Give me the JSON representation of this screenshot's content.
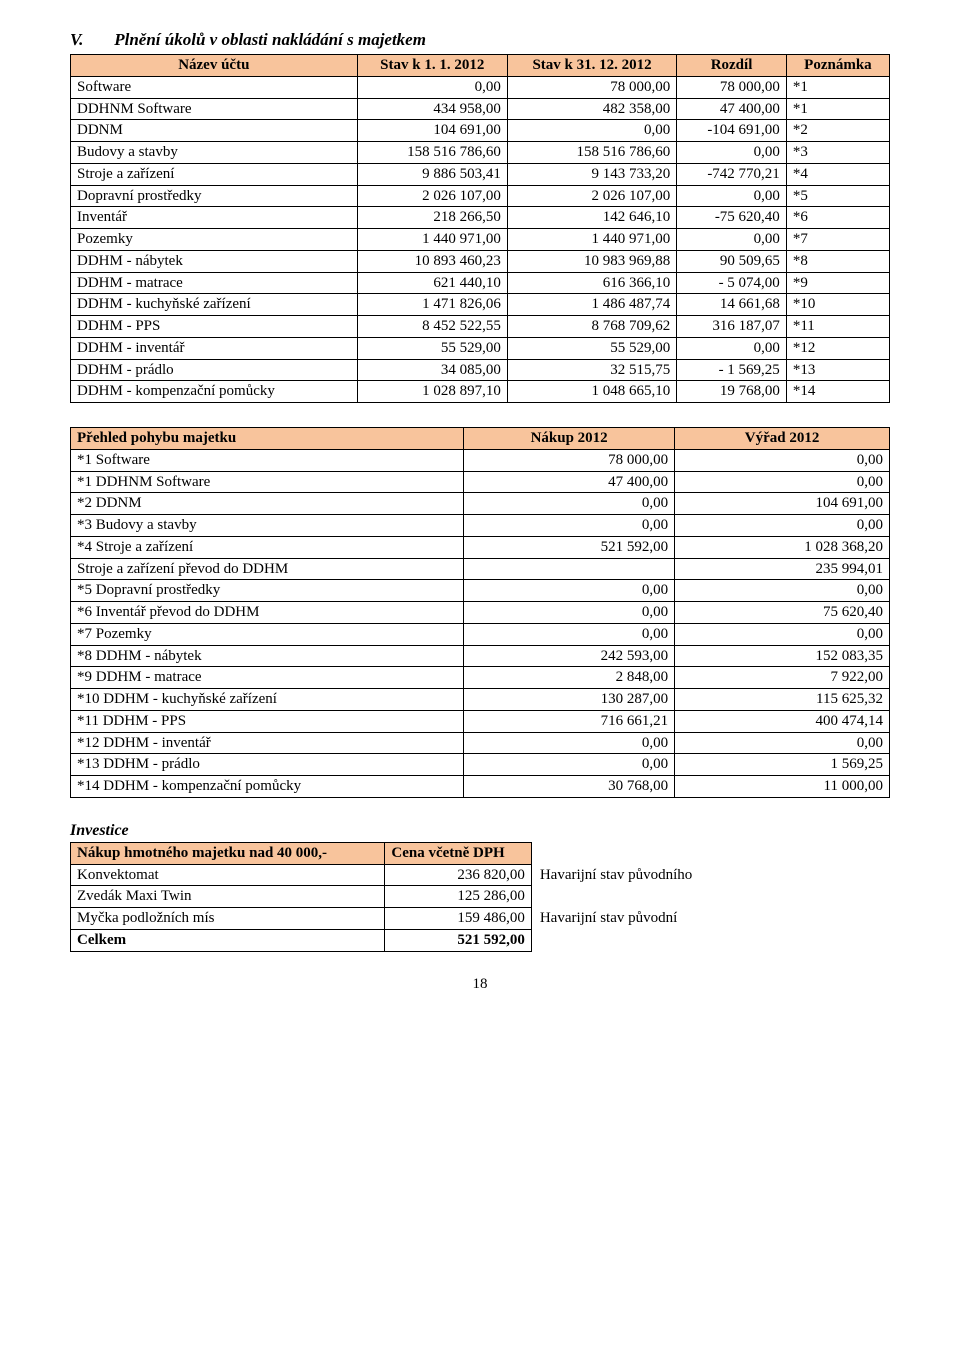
{
  "section": {
    "roman": "V.",
    "title": "Plnění úkolů v oblasti nakládání s majetkem"
  },
  "table1": {
    "headers": [
      "Název účtu",
      "Stav k 1. 1. 2012",
      "Stav k 31. 12. 2012",
      "Rozdíl",
      "Poznámka"
    ],
    "rows": [
      {
        "name": "Software",
        "v1": "0,00",
        "v2": "78 000,00",
        "diff": "78 000,00",
        "note": "*1"
      },
      {
        "name": "DDHNM Software",
        "v1": "434 958,00",
        "v2": "482 358,00",
        "diff": "47 400,00",
        "note": "*1"
      },
      {
        "name": "DDNM",
        "v1": "104 691,00",
        "v2": "0,00",
        "diff": "-104 691,00",
        "note": "*2"
      },
      {
        "name": "Budovy a stavby",
        "v1": "158 516 786,60",
        "v2": "158 516 786,60",
        "diff": "0,00",
        "note": "*3"
      },
      {
        "name": "Stroje a zařízení",
        "v1": "9 886 503,41",
        "v2": "9 143 733,20",
        "diff": "-742  770,21",
        "note": "*4"
      },
      {
        "name": "Dopravní prostředky",
        "v1": "2 026 107,00",
        "v2": "2 026 107,00",
        "diff": "0,00",
        "note": "*5"
      },
      {
        "name": "Inventář",
        "v1": "218 266,50",
        "v2": "142 646,10",
        "diff": "-75 620,40",
        "note": "*6"
      },
      {
        "name": "Pozemky",
        "v1": "1 440 971,00",
        "v2": "1 440 971,00",
        "diff": "0,00",
        "note": "*7"
      },
      {
        "name": "DDHM - nábytek",
        "v1": "10 893 460,23",
        "v2": "10 983 969,88",
        "diff": "90 509,65",
        "note": "*8"
      },
      {
        "name": "DDHM - matrace",
        "v1": "621 440,10",
        "v2": "616 366,10",
        "diff": "- 5 074,00",
        "note": "*9"
      },
      {
        "name": "DDHM - kuchyňské zařízení",
        "v1": "1 471 826,06",
        "v2": "1 486 487,74",
        "diff": "14 661,68",
        "note": "*10"
      },
      {
        "name": "DDHM - PPS",
        "v1": "8 452 522,55",
        "v2": "8 768 709,62",
        "diff": "316 187,07",
        "note": "*11"
      },
      {
        "name": "DDHM - inventář",
        "v1": "55 529,00",
        "v2": "55 529,00",
        "diff": "0,00",
        "note": "*12"
      },
      {
        "name": "DDHM - prádlo",
        "v1": "34 085,00",
        "v2": "32 515,75",
        "diff": "- 1 569,25",
        "note": "*13"
      },
      {
        "name": "DDHM - kompenzační pomůcky",
        "v1": "1 028 897,10",
        "v2": "1 048 665,10",
        "diff": "19 768,00",
        "note": "*14"
      }
    ]
  },
  "table2": {
    "headers": [
      "Přehled pohybu majetku",
      "Nákup 2012",
      "Výřad 2012"
    ],
    "rows": [
      {
        "name": "*1 Software",
        "v1": "78 000,00",
        "v2": "0,00"
      },
      {
        "name": "*1 DDHNM Software",
        "v1": "47 400,00",
        "v2": "0,00"
      },
      {
        "name": "*2 DDNM",
        "v1": "0,00",
        "v2": "104 691,00"
      },
      {
        "name": "*3 Budovy a stavby",
        "v1": "0,00",
        "v2": "0,00"
      },
      {
        "name": "*4 Stroje a zařízení",
        "v1": "521 592,00",
        "v2": "1 028 368,20"
      },
      {
        "name": "Stroje a zařízení převod do DDHM",
        "v1": "",
        "v2": "235 994,01"
      },
      {
        "name": "*5 Dopravní prostředky",
        "v1": "0,00",
        "v2": "0,00"
      },
      {
        "name": "*6 Inventář převod do DDHM",
        "v1": "0,00",
        "v2": "75 620,40"
      },
      {
        "name": "*7 Pozemky",
        "v1": "0,00",
        "v2": "0,00"
      },
      {
        "name": "*8 DDHM - nábytek",
        "v1": "242 593,00",
        "v2": "152 083,35"
      },
      {
        "name": "*9 DDHM - matrace",
        "v1": "2 848,00",
        "v2": "7 922,00"
      },
      {
        "name": "*10 DDHM - kuchyňské zařízení",
        "v1": "130 287,00",
        "v2": "115 625,32"
      },
      {
        "name": "*11 DDHM - PPS",
        "v1": "716 661,21",
        "v2": "400 474,14"
      },
      {
        "name": "*12 DDHM - inventář",
        "v1": "0,00",
        "v2": "0,00"
      },
      {
        "name": "*13 DDHM - prádlo",
        "v1": "0,00",
        "v2": "1 569,25"
      },
      {
        "name": "*14 DDHM - kompenzační pomůcky",
        "v1": "30 768,00",
        "v2": "11 000,00"
      }
    ]
  },
  "investice_label": "Investice",
  "table3": {
    "headers": [
      "Nákup hmotného majetku nad 40 000,-",
      "Cena včetně DPH"
    ],
    "rows": [
      {
        "name": "Konvektomat",
        "v": "236 820,00",
        "note": "Havarijní stav původního"
      },
      {
        "name": "Zvedák Maxi Twin",
        "v": "125 286,00",
        "note": ""
      },
      {
        "name": "Myčka podložních mís",
        "v": "159 486,00",
        "note": "Havarijní stav původní"
      },
      {
        "name": "Celkem",
        "v": "521 592,00",
        "note": "",
        "bold": true
      }
    ]
  },
  "pagenum": "18",
  "colors": {
    "header_bg": "#f8c49c",
    "border": "#000000",
    "text": "#000000",
    "bg": "#ffffff"
  }
}
